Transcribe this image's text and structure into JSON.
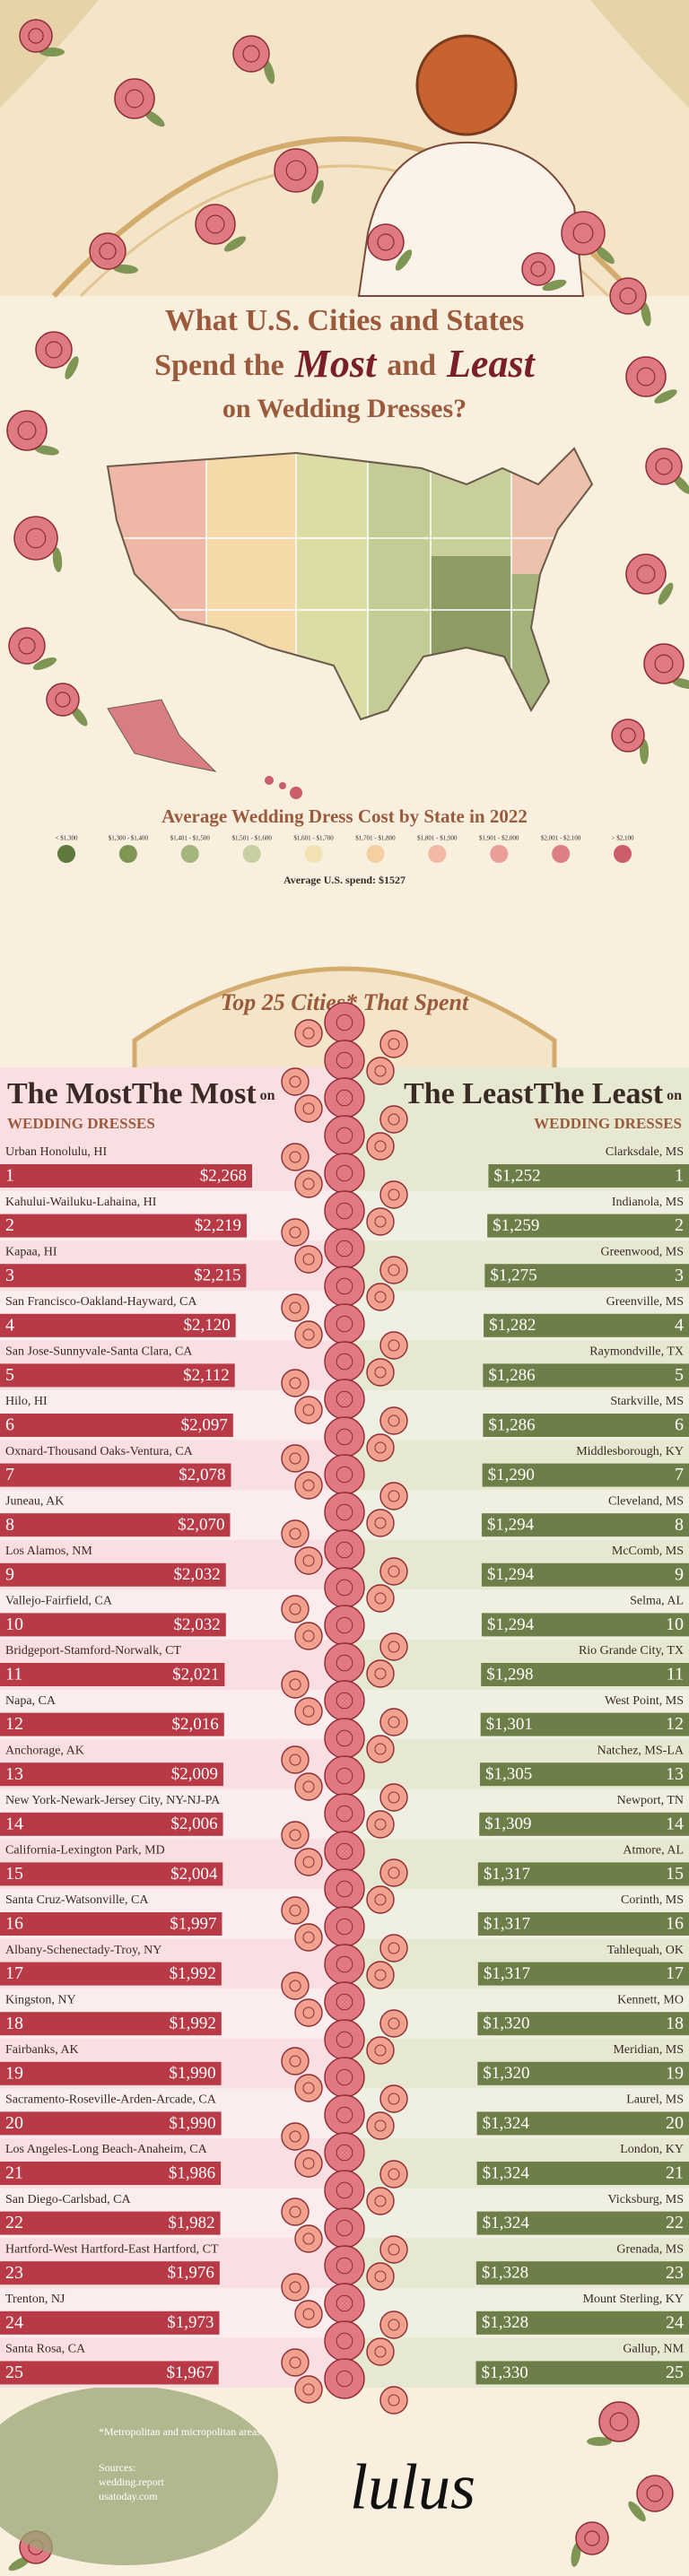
{
  "header": {
    "title": [
      "What U.S. Cities and States",
      "Spend the",
      "Most",
      "and",
      "Least",
      "on Wedding Dresses?"
    ]
  },
  "map": {
    "legend_title": "Average Wedding Dress Cost by State in 2022",
    "legend_labels": [
      "< $1,300",
      "$1,300 - $1,400",
      "$1,401 - $1,500",
      "$1,501 - $1,600",
      "$1,601 - $1,700",
      "$1,701 - $1,800",
      "$1,801 - $1,900",
      "$1,901 - $2,000",
      "$2,001 - $2,100",
      "> $2,100"
    ],
    "legend_colors": [
      "#5f7a3e",
      "#7f9553",
      "#a4b57b",
      "#c8cfa1",
      "#f3e2b4",
      "#f5cfa2",
      "#f1b8a3",
      "#eb9e98",
      "#dd7f86",
      "#cc5d6b"
    ],
    "average_note": "Average U.S. spend: $1527"
  },
  "section": {
    "heading": "Top 25 Cities* That Spent"
  },
  "chart_data": [
    {
      "type": "bar",
      "orientation": "horizontal",
      "side": "left",
      "title": "The Most",
      "title_suffix": "on",
      "subtitle": "WEDDING DRESSES",
      "color": "#b73a46",
      "xlim": [
        0,
        2300
      ],
      "categories": [
        "Urban Honolulu, HI",
        "Kahului-Wailuku-Lahaina, HI",
        "Kapaa, HI",
        "San Francisco-Oakland-Hayward, CA",
        "San Jose-Sunnyvale-Santa Clara, CA",
        "Hilo, HI",
        "Oxnard-Thousand Oaks-Ventura, CA",
        "Juneau, AK",
        "Los Alamos, NM",
        "Vallejo-Fairfield, CA",
        "Bridgeport-Stamford-Norwalk, CT",
        "Napa, CA",
        "Anchorage, AK",
        "New York-Newark-Jersey City, NY-NJ-PA",
        "California-Lexington Park, MD",
        "Santa Cruz-Watsonville, CA",
        "Albany-Schenectady-Troy, NY",
        "Kingston, NY",
        "Fairbanks, AK",
        "Sacramento-Roseville-Arden-Arcade, CA",
        "Los Angeles-Long Beach-Anaheim, CA",
        "San Diego-Carlsbad, CA",
        "Hartford-West Hartford-East Hartford, CT",
        "Trenton, NJ",
        "Santa Rosa, CA"
      ],
      "ranks": [
        1,
        2,
        3,
        4,
        5,
        6,
        7,
        8,
        9,
        10,
        11,
        12,
        13,
        14,
        15,
        16,
        17,
        18,
        19,
        20,
        21,
        22,
        23,
        24,
        25
      ],
      "values": [
        2268,
        2219,
        2215,
        2120,
        2112,
        2097,
        2078,
        2070,
        2032,
        2032,
        2021,
        2016,
        2009,
        2006,
        2004,
        1997,
        1992,
        1992,
        1990,
        1990,
        1986,
        1982,
        1976,
        1973,
        1967
      ],
      "value_labels": [
        "$2,268",
        "$2,219",
        "$2,215",
        "$2,120",
        "$2,112",
        "$2,097",
        "$2,078",
        "$2,070",
        "$2,032",
        "$2,032",
        "$2,021",
        "$2,016",
        "$2,009",
        "$2,006",
        "$2,004",
        "$1,997",
        "$1,992",
        "$1,992",
        "$1,990",
        "$1,990",
        "$1,986",
        "$1,982",
        "$1,976",
        "$1,973",
        "$1,967"
      ]
    },
    {
      "type": "bar",
      "orientation": "horizontal",
      "side": "right",
      "title": "The Least",
      "title_suffix": "on",
      "subtitle": "WEDDING DRESSES",
      "color": "#6e7e48",
      "xlim": [
        0,
        1400
      ],
      "categories": [
        "Clarksdale, MS",
        "Indianola, MS",
        "Greenwood, MS",
        "Greenville, MS",
        "Raymondville, TX",
        "Starkville, MS",
        "Middlesborough, KY",
        "Cleveland, MS",
        "McComb, MS",
        "Selma, AL",
        "Rio Grande City, TX",
        "West Point, MS",
        "Natchez, MS-LA",
        "Newport, TN",
        "Atmore, AL",
        "Corinth, MS",
        "Tahlequah, OK",
        "Kennett, MO",
        "Meridian, MS",
        "Laurel, MS",
        "London, KY",
        "Vicksburg, MS",
        "Grenada, MS",
        "Mount Sterling, KY",
        "Gallup, NM"
      ],
      "ranks": [
        1,
        2,
        3,
        4,
        5,
        6,
        7,
        8,
        9,
        10,
        11,
        12,
        13,
        14,
        15,
        16,
        17,
        18,
        19,
        20,
        21,
        22,
        23,
        24,
        25
      ],
      "values": [
        1252,
        1259,
        1275,
        1282,
        1286,
        1286,
        1290,
        1294,
        1294,
        1294,
        1298,
        1301,
        1305,
        1309,
        1317,
        1317,
        1317,
        1320,
        1320,
        1324,
        1324,
        1324,
        1328,
        1328,
        1330
      ],
      "value_labels": [
        "$1,252",
        "$1,259",
        "$1,275",
        "$1,282",
        "$1,286",
        "$1,286",
        "$1,290",
        "$1,294",
        "$1,294",
        "$1,294",
        "$1,298",
        "$1,301",
        "$1,305",
        "$1,309",
        "$1,317",
        "$1,317",
        "$1,317",
        "$1,320",
        "$1,320",
        "$1,324",
        "$1,324",
        "$1,324",
        "$1,328",
        "$1,328",
        "$1,330"
      ]
    }
  ],
  "footer": {
    "note": "*Metropolitan and micropolitan areas",
    "sources_label": "Sources:",
    "sources": [
      "wedding.report",
      "usatoday.com"
    ],
    "logo": "lulus"
  }
}
